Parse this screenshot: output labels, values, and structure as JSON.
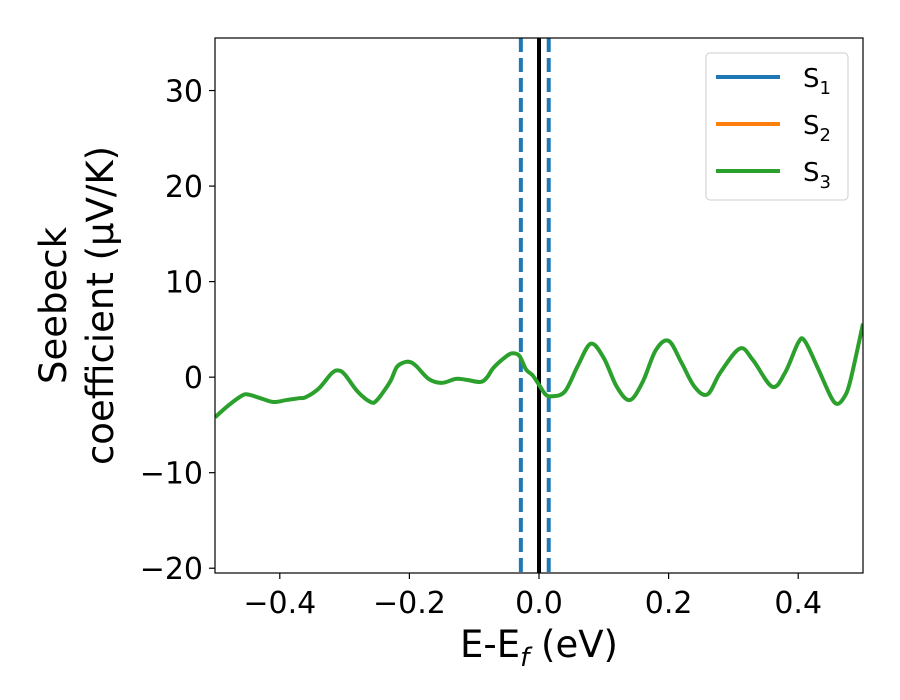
{
  "chart_data": {
    "type": "line",
    "xlabel": "E-E",
    "xlabel_sub": "f",
    "xlabel_unit": " (eV)",
    "ylabel_line1": "Seebeck",
    "ylabel_line2": "coefficient  (μV/K)",
    "xlim": [
      -0.5,
      0.5
    ],
    "ylim": [
      -20.5,
      35.5
    ],
    "xticks": [
      -0.4,
      -0.2,
      0.0,
      0.2,
      0.4
    ],
    "xtick_labels": [
      "−0.4",
      "−0.2",
      "0.0",
      "0.2",
      "0.4"
    ],
    "yticks": [
      -20,
      -10,
      0,
      10,
      20,
      30
    ],
    "ytick_labels": [
      "−20",
      "−10",
      "0",
      "10",
      "20",
      "30"
    ],
    "legend_position": "top-right",
    "series": [
      {
        "name": "S",
        "sub": "1",
        "color": "#1f77b4",
        "x": [],
        "y": []
      },
      {
        "name": "S",
        "sub": "2",
        "color": "#ff7f0e",
        "x": [],
        "y": []
      },
      {
        "name": "S",
        "sub": "3",
        "color": "#2ca02c",
        "x": [
          -0.5,
          -0.48,
          -0.46,
          -0.45,
          -0.43,
          -0.41,
          -0.39,
          -0.37,
          -0.36,
          -0.34,
          -0.32,
          -0.31,
          -0.3,
          -0.28,
          -0.26,
          -0.25,
          -0.23,
          -0.22,
          -0.21,
          -0.2,
          -0.19,
          -0.17,
          -0.15,
          -0.13,
          -0.12,
          -0.11,
          -0.09,
          -0.08,
          -0.07,
          -0.05,
          -0.04,
          -0.03,
          -0.02,
          -0.01,
          0.0,
          0.01,
          0.02,
          0.04,
          0.06,
          0.08,
          0.1,
          0.12,
          0.14,
          0.16,
          0.18,
          0.2,
          0.22,
          0.24,
          0.26,
          0.28,
          0.31,
          0.33,
          0.36,
          0.38,
          0.4,
          0.41,
          0.43,
          0.45,
          0.46,
          0.47,
          0.48,
          0.5
        ],
        "y": [
          -4.2,
          -3.0,
          -2.0,
          -1.8,
          -2.2,
          -2.6,
          -2.4,
          -2.2,
          -2.1,
          -1.2,
          0.4,
          0.7,
          0.3,
          -1.5,
          -2.6,
          -2.4,
          -0.5,
          1.0,
          1.5,
          1.6,
          1.2,
          -0.2,
          -0.6,
          -0.2,
          -0.2,
          -0.3,
          -0.5,
          0.0,
          1.0,
          2.2,
          2.5,
          2.2,
          0.8,
          0.2,
          -0.8,
          -1.8,
          -2.0,
          -1.5,
          1.2,
          3.5,
          2.0,
          -1.0,
          -2.4,
          -0.5,
          2.8,
          3.8,
          1.5,
          -1.0,
          -1.8,
          0.5,
          3.0,
          1.8,
          -1.0,
          0.5,
          3.6,
          3.8,
          1.0,
          -2.0,
          -2.8,
          -2.2,
          -0.5,
          5.6
        ]
      }
    ],
    "vlines": [
      {
        "x": -0.028,
        "color": "#1f77b4",
        "style": "dashed"
      },
      {
        "x": 0.0,
        "color": "#000000",
        "style": "solid"
      },
      {
        "x": 0.015,
        "color": "#1f77b4",
        "style": "dashed"
      }
    ]
  }
}
